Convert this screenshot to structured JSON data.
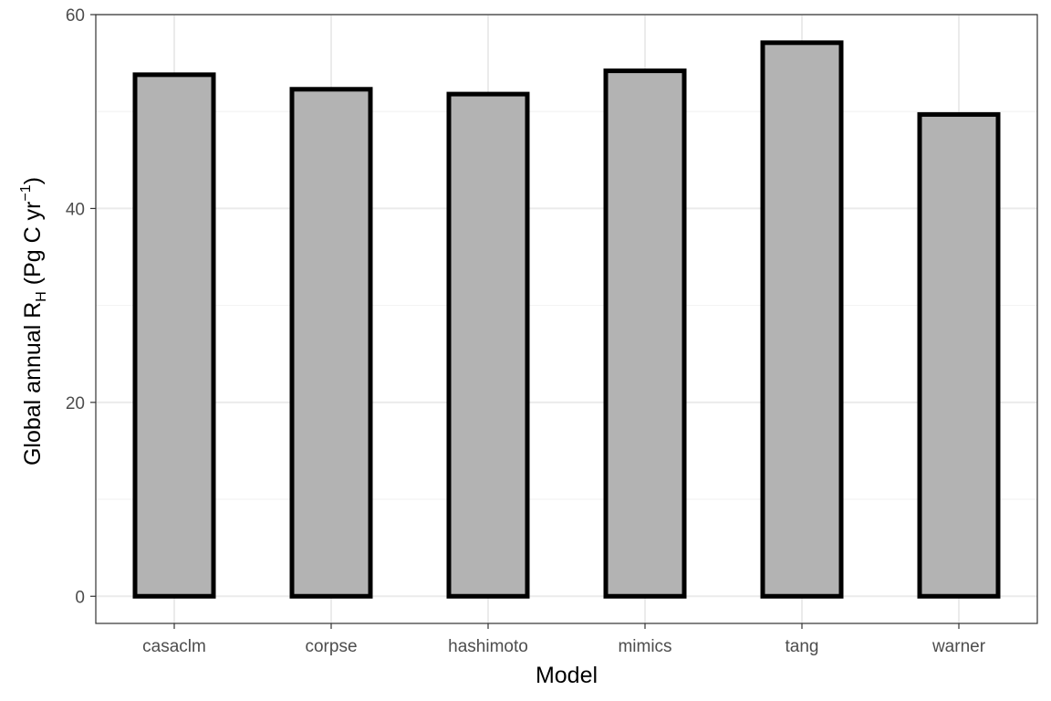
{
  "chart_data": {
    "type": "bar",
    "categories": [
      "casaclm",
      "corpse",
      "hashimoto",
      "mimics",
      "tang",
      "warner"
    ],
    "values": [
      53.8,
      52.3,
      51.8,
      54.2,
      57.1,
      49.7
    ],
    "title": "",
    "xlabel": "Model",
    "ylabel": {
      "prefix": "Global annual R",
      "subscript": "H",
      "units_open": " (Pg C yr",
      "superscript": "−1",
      "units_close": ")"
    },
    "ylim": [
      -2.8,
      60
    ],
    "yticks": [
      0,
      20,
      40,
      60
    ],
    "grid": true,
    "legend": "none",
    "colors": {
      "bar_fill": "#b3b3b3",
      "bar_stroke": "#000000",
      "grid_major": "#ebebeb",
      "grid_minor": "#f2f2f2",
      "panel_border": "#333333",
      "tick_text": "#4d4d4d"
    }
  }
}
